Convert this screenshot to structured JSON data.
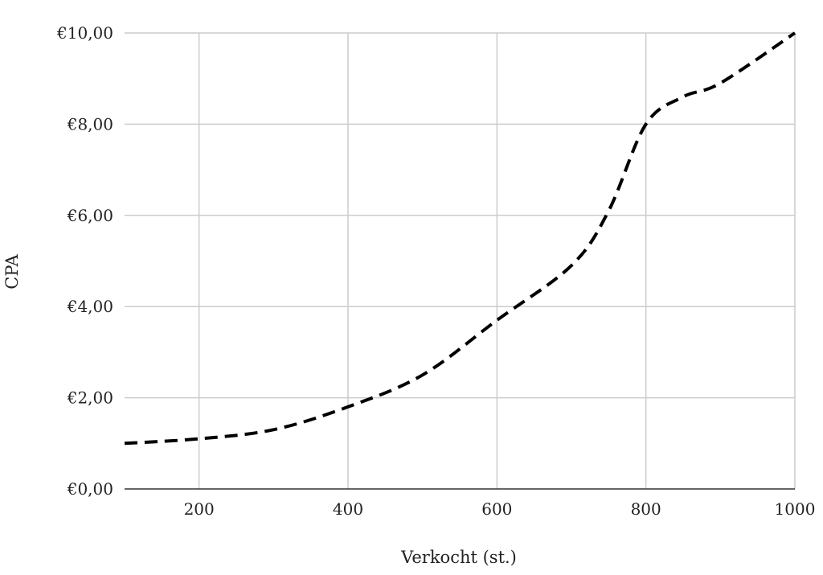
{
  "chart_data": {
    "type": "line",
    "xlabel": "Verkocht (st.)",
    "ylabel": "CPA",
    "xlim": [
      100,
      1000
    ],
    "ylim": [
      0,
      10
    ],
    "x_ticks": [
      200,
      400,
      600,
      800,
      1000
    ],
    "x_tick_labels": [
      "200",
      "400",
      "600",
      "800",
      "1000"
    ],
    "y_ticks": [
      0,
      2,
      4,
      6,
      8,
      10
    ],
    "y_tick_labels": [
      "€0,00",
      "€2,00",
      "€4,00",
      "€6,00",
      "€8,00",
      "€10,00"
    ],
    "grid": true,
    "line_style": "dashed",
    "line_color": "#000000",
    "series": [
      {
        "x": [
          100,
          200,
          300,
          400,
          500,
          600,
          700,
          750,
          800,
          850,
          900,
          1000
        ],
        "values": [
          1.0,
          1.1,
          1.3,
          1.8,
          2.5,
          3.7,
          4.9,
          6.1,
          8.0,
          8.6,
          8.9,
          10.0
        ]
      }
    ]
  }
}
